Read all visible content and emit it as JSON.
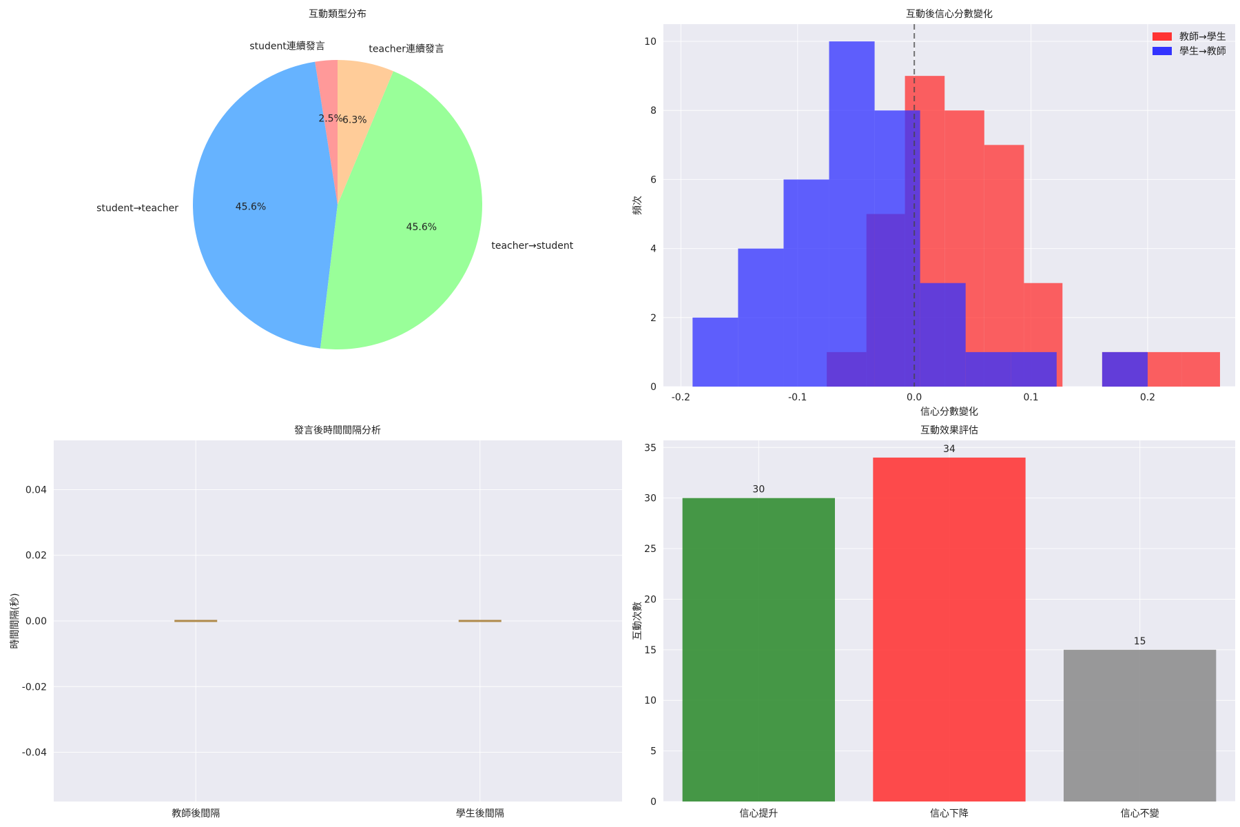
{
  "chart_data": [
    {
      "id": "pie",
      "type": "pie",
      "title": "互動類型分布",
      "slices": [
        {
          "label": "student連續發言",
          "pct_label": "2.5%",
          "value": 2.5,
          "color": "#ff9999"
        },
        {
          "label": "student→teacher",
          "pct_label": "45.6%",
          "value": 45.6,
          "color": "#66b3ff"
        },
        {
          "label": "teacher→student",
          "pct_label": "45.6%",
          "value": 45.6,
          "color": "#99ff99"
        },
        {
          "label": "teacher連續發言",
          "pct_label": "6.3%",
          "value": 6.3,
          "color": "#ffcc99"
        }
      ]
    },
    {
      "id": "hist",
      "type": "bar",
      "subtype": "histogram",
      "title": "互動後信心分數變化",
      "xlabel": "信心分數變化",
      "ylabel": "頻次",
      "xlim": [
        -0.215,
        0.275
      ],
      "ylim": [
        0,
        10.5
      ],
      "xticks": [
        -0.2,
        -0.1,
        0.0,
        0.1,
        0.2
      ],
      "xtick_labels": [
        "-0.2",
        "-0.1",
        "0.0",
        "0.1",
        "0.2"
      ],
      "yticks": [
        0,
        2,
        4,
        6,
        8,
        10
      ],
      "vline_x": 0.0,
      "legend": "top-right",
      "series": [
        {
          "name": "教師→學生",
          "color": "#ff3333",
          "bins": [
            {
              "x0": -0.075,
              "x1": -0.041,
              "count": 1
            },
            {
              "x0": -0.041,
              "x1": -0.008,
              "count": 5
            },
            {
              "x0": -0.008,
              "x1": 0.026,
              "count": 9
            },
            {
              "x0": 0.026,
              "x1": 0.06,
              "count": 8
            },
            {
              "x0": 0.06,
              "x1": 0.094,
              "count": 7
            },
            {
              "x0": 0.094,
              "x1": 0.127,
              "count": 3
            },
            {
              "x0": 0.127,
              "x1": 0.161,
              "count": 0
            },
            {
              "x0": 0.161,
              "x1": 0.195,
              "count": 1
            },
            {
              "x0": 0.195,
              "x1": 0.229,
              "count": 1
            },
            {
              "x0": 0.229,
              "x1": 0.262,
              "count": 1
            }
          ]
        },
        {
          "name": "學生→教師",
          "color": "#3333ff",
          "bins": [
            {
              "x0": -0.19,
              "x1": -0.151,
              "count": 2
            },
            {
              "x0": -0.151,
              "x1": -0.112,
              "count": 4
            },
            {
              "x0": -0.112,
              "x1": -0.073,
              "count": 6
            },
            {
              "x0": -0.073,
              "x1": -0.034,
              "count": 10
            },
            {
              "x0": -0.034,
              "x1": 0.005,
              "count": 8
            },
            {
              "x0": 0.005,
              "x1": 0.044,
              "count": 3
            },
            {
              "x0": 0.044,
              "x1": 0.083,
              "count": 1
            },
            {
              "x0": 0.083,
              "x1": 0.122,
              "count": 1
            },
            {
              "x0": 0.122,
              "x1": 0.161,
              "count": 0
            },
            {
              "x0": 0.161,
              "x1": 0.2,
              "count": 1
            }
          ]
        }
      ]
    },
    {
      "id": "box",
      "type": "box",
      "title": "發言後時間間隔分析",
      "ylabel": "時間間隔(秒)",
      "ylim": [
        -0.055,
        0.055
      ],
      "yticks": [
        -0.04,
        -0.02,
        0.0,
        0.02,
        0.04
      ],
      "ytick_labels": [
        "-0.04",
        "-0.02",
        "0.00",
        "0.02",
        "0.04"
      ],
      "categories": [
        "教師後間隔",
        "學生後間隔"
      ],
      "values": [
        0.0,
        0.0
      ]
    },
    {
      "id": "bars",
      "type": "bar",
      "title": "互動效果評估",
      "ylabel": "互動次數",
      "categories": [
        "信心提升",
        "信心下降",
        "信心不變"
      ],
      "values": [
        30,
        34,
        15
      ],
      "value_labels": [
        "30",
        "34",
        "15"
      ],
      "colors": [
        "#2e8b2e",
        "#ff3333",
        "#8c8c8c"
      ],
      "ylim": [
        0,
        35.7
      ],
      "yticks": [
        0,
        5,
        10,
        15,
        20,
        25,
        30,
        35
      ]
    }
  ]
}
